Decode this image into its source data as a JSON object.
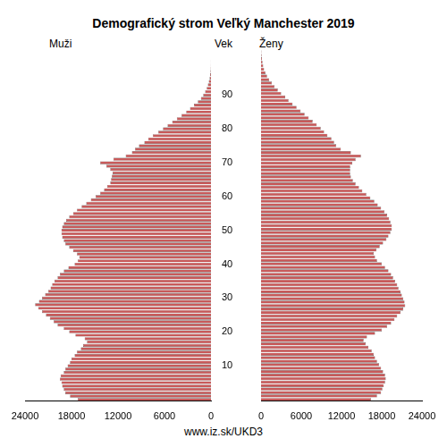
{
  "chart_data": {
    "type": "population_pyramid",
    "title": "Demografický strom Veľký Manchester 2019",
    "y_label": "Vek",
    "source": "www.iz.sk/UKD3",
    "grid": false,
    "categories": [
      null,
      null,
      null,
      null,
      null,
      null,
      null,
      null,
      null,
      null,
      "10",
      null,
      null,
      null,
      null,
      null,
      null,
      null,
      null,
      null,
      "20",
      null,
      null,
      null,
      null,
      null,
      null,
      null,
      null,
      null,
      "30",
      null,
      null,
      null,
      null,
      null,
      null,
      null,
      null,
      null,
      "40",
      null,
      null,
      null,
      null,
      null,
      null,
      null,
      null,
      null,
      "50",
      null,
      null,
      null,
      null,
      null,
      null,
      null,
      null,
      null,
      "60",
      null,
      null,
      null,
      null,
      null,
      null,
      null,
      null,
      null,
      "70",
      null,
      null,
      null,
      null,
      null,
      null,
      null,
      null,
      null,
      "80",
      null,
      null,
      null,
      null,
      null,
      null,
      null,
      null,
      null,
      "90",
      null,
      null,
      null,
      null,
      null,
      null,
      null,
      null,
      null,
      null
    ],
    "xlim": [
      0,
      24000
    ],
    "xticks": [
      0,
      6000,
      12000,
      18000,
      24000
    ],
    "series": [
      {
        "name": "Muži",
        "color": "#c85a5a",
        "values": [
          17200,
          18200,
          18800,
          19000,
          19200,
          19300,
          19500,
          19400,
          19000,
          18800,
          18500,
          18200,
          18000,
          17600,
          17300,
          16800,
          16500,
          16000,
          16300,
          17500,
          18300,
          19000,
          19800,
          20300,
          20800,
          21300,
          21800,
          22300,
          22700,
          22200,
          21800,
          21400,
          21000,
          20700,
          20500,
          20200,
          19800,
          19500,
          19000,
          18400,
          17600,
          17200,
          17000,
          17300,
          17800,
          18300,
          18800,
          19000,
          19200,
          19300,
          19300,
          19200,
          19000,
          18700,
          18300,
          17800,
          17300,
          16700,
          16100,
          15500,
          14900,
          14300,
          13800,
          13400,
          13000,
          12900,
          12800,
          12700,
          13000,
          13500,
          14300,
          12600,
          11000,
          10200,
          9800,
          9300,
          8600,
          8100,
          7500,
          6800,
          6200,
          5600,
          5000,
          4400,
          3800,
          3200,
          2700,
          2200,
          1700,
          1300,
          1000,
          750,
          550,
          400,
          280,
          180,
          120,
          70,
          45,
          25,
          20
        ]
      },
      {
        "name": "Ženy",
        "color": "#c85a5a",
        "values": [
          16400,
          17300,
          17900,
          18100,
          18300,
          18500,
          18600,
          18500,
          18200,
          17900,
          17600,
          17300,
          17000,
          16800,
          16500,
          16000,
          15600,
          15300,
          15800,
          17000,
          18000,
          18800,
          19400,
          19900,
          20300,
          20800,
          21200,
          21500,
          21400,
          21200,
          21000,
          20800,
          20500,
          20300,
          20000,
          19700,
          19400,
          19000,
          18500,
          18000,
          17300,
          17000,
          16800,
          17200,
          17700,
          18200,
          18700,
          19000,
          19300,
          19500,
          19500,
          19300,
          19100,
          18800,
          18400,
          17900,
          17400,
          16900,
          16300,
          15700,
          15100,
          14600,
          14100,
          13700,
          13400,
          13300,
          13300,
          13300,
          13600,
          14100,
          14900,
          13400,
          11900,
          11200,
          10900,
          10500,
          9900,
          9400,
          8900,
          8300,
          7700,
          7100,
          6500,
          5900,
          5300,
          4700,
          4100,
          3600,
          3000,
          2500,
          2000,
          1600,
          1200,
          900,
          650,
          450,
          320,
          220,
          140,
          90,
          60
        ]
      }
    ]
  }
}
